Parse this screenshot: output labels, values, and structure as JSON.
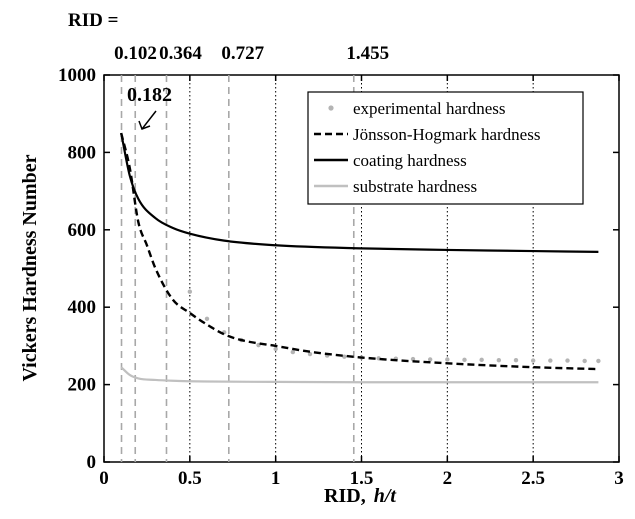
{
  "chart_data": {
    "type": "line",
    "xlabel": "RID,",
    "xlabel_italic": "h/t",
    "ylabel": "Vickers Hardness Number",
    "xlim": [
      0,
      3
    ],
    "ylim": [
      0,
      1000
    ],
    "xticks": [
      0,
      0.5,
      1,
      1.5,
      2,
      2.5,
      3
    ],
    "xtick_labels": [
      "0",
      "0.5",
      "1",
      "1.5",
      "2",
      "2.5",
      "3"
    ],
    "yticks": [
      0,
      200,
      400,
      600,
      800,
      1000
    ],
    "ytick_labels": [
      "0",
      "200",
      "400",
      "600",
      "800",
      "1000"
    ],
    "grid": "vertical",
    "legend_position": "top-right",
    "rid_header": "RID =",
    "rid_markers": [
      {
        "value": 0.102,
        "label": "0.102",
        "position": "top"
      },
      {
        "value": 0.182,
        "label": "0.182",
        "position": "callout"
      },
      {
        "value": 0.364,
        "label": "0.364",
        "position": "top"
      },
      {
        "value": 0.727,
        "label": "0.727",
        "position": "top"
      },
      {
        "value": 1.455,
        "label": "1.455",
        "position": "top"
      }
    ],
    "series": [
      {
        "name": "experimental hardness",
        "style": "dots",
        "color": "#b4b4b4",
        "x": [
          0.5,
          0.6,
          0.7,
          0.8,
          0.9,
          1.0,
          1.1,
          1.2,
          1.3,
          1.4,
          1.5,
          1.6,
          1.7,
          1.8,
          1.9,
          2.0,
          2.1,
          2.2,
          2.3,
          2.4,
          2.5,
          2.6,
          2.7,
          2.8,
          2.88
        ],
        "y": [
          440,
          370,
          335,
          315,
          302,
          292,
          284,
          279,
          275,
          272,
          270,
          268,
          267,
          266,
          265,
          265,
          264,
          264,
          263,
          263,
          262,
          262,
          262,
          261,
          261
        ]
      },
      {
        "name": "Jönsson-Hogmark hardness",
        "style": "dashed",
        "color": "#000000",
        "x": [
          0.1,
          0.15,
          0.2,
          0.25,
          0.3,
          0.4,
          0.5,
          0.6,
          0.7,
          0.8,
          1.0,
          1.2,
          1.5,
          2.0,
          2.5,
          2.88
        ],
        "y": [
          850,
          760,
          620,
          560,
          500,
          420,
          385,
          355,
          330,
          315,
          300,
          285,
          270,
          255,
          245,
          240
        ]
      },
      {
        "name": "coating hardness",
        "style": "solid",
        "color": "#000000",
        "x": [
          0.1,
          0.15,
          0.2,
          0.3,
          0.4,
          0.5,
          0.7,
          1.0,
          1.5,
          2.0,
          2.5,
          2.88
        ],
        "y": [
          850,
          740,
          680,
          630,
          605,
          590,
          572,
          560,
          552,
          548,
          545,
          543
        ]
      },
      {
        "name": "substrate hardness",
        "style": "solid",
        "color": "#c0c0c0",
        "x": [
          0.1,
          0.15,
          0.2,
          0.3,
          0.4,
          0.6,
          1.0,
          1.5,
          2.0,
          2.5,
          2.88
        ],
        "y": [
          245,
          225,
          216,
          212,
          210,
          208,
          207,
          206,
          206,
          206,
          206
        ]
      }
    ]
  }
}
